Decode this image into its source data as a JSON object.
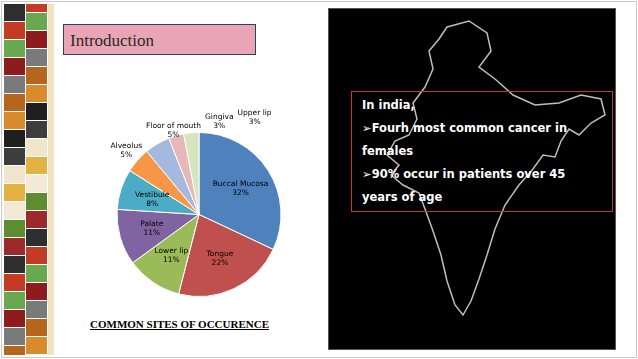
{
  "header": {
    "title": "Introduction"
  },
  "chart_data": {
    "type": "pie",
    "title": "COMMON SITES OF OCCURENCE",
    "categories": [
      "Buccal Mucosa",
      "Tongue",
      "Lower lip",
      "Palate",
      "Vestibule",
      "Alveolus",
      "Floor of mouth",
      "Gingiva",
      "Upper lip"
    ],
    "values": [
      32,
      22,
      11,
      11,
      8,
      5,
      5,
      3,
      3
    ],
    "value_labels": [
      "32%",
      "22%",
      "11%",
      "11%",
      "8%",
      "5%",
      "5%",
      "3%",
      "3%"
    ],
    "colors": [
      "#4f81bd",
      "#c0504d",
      "#9bbb59",
      "#8064a2",
      "#4bacc6",
      "#f79646",
      "#a5b8dd",
      "#e6b9b8",
      "#d7e4bd"
    ],
    "data_labels": true
  },
  "text_box": {
    "heading": "In india,",
    "bullets": [
      "➢Fourh  most common cancer in females",
      "➢90% occur in patients over  45 years of age"
    ]
  }
}
